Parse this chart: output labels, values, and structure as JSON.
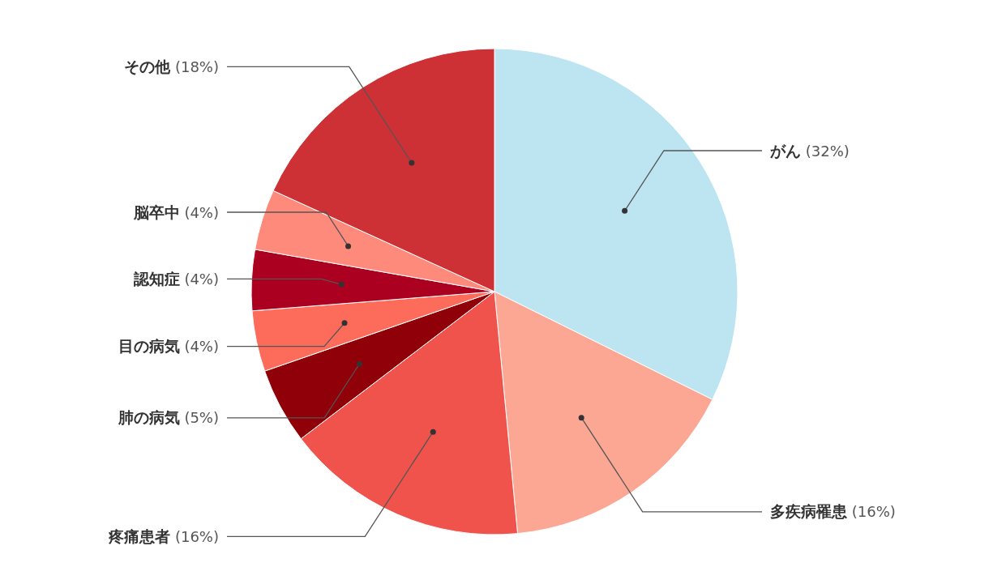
{
  "chart_data": {
    "type": "pie",
    "categories": [
      "がん",
      "多疾病罹患",
      "疼痛患者",
      "肺の病気",
      "目の病気",
      "認知症",
      "脳卒中",
      "その他"
    ],
    "values": [
      32,
      16,
      16,
      5,
      4,
      4,
      4,
      18
    ],
    "value_labels": [
      "(32%)",
      "(16%)",
      "(16%)",
      "(5%)",
      "(4%)",
      "(4%)",
      "(4%)",
      "(18%)"
    ],
    "colors": [
      "#bce4f1",
      "#fca794",
      "#ef534b",
      "#8f0009",
      "#fd6b5b",
      "#ac0020",
      "#fd8a7b",
      "#cd3035"
    ]
  }
}
